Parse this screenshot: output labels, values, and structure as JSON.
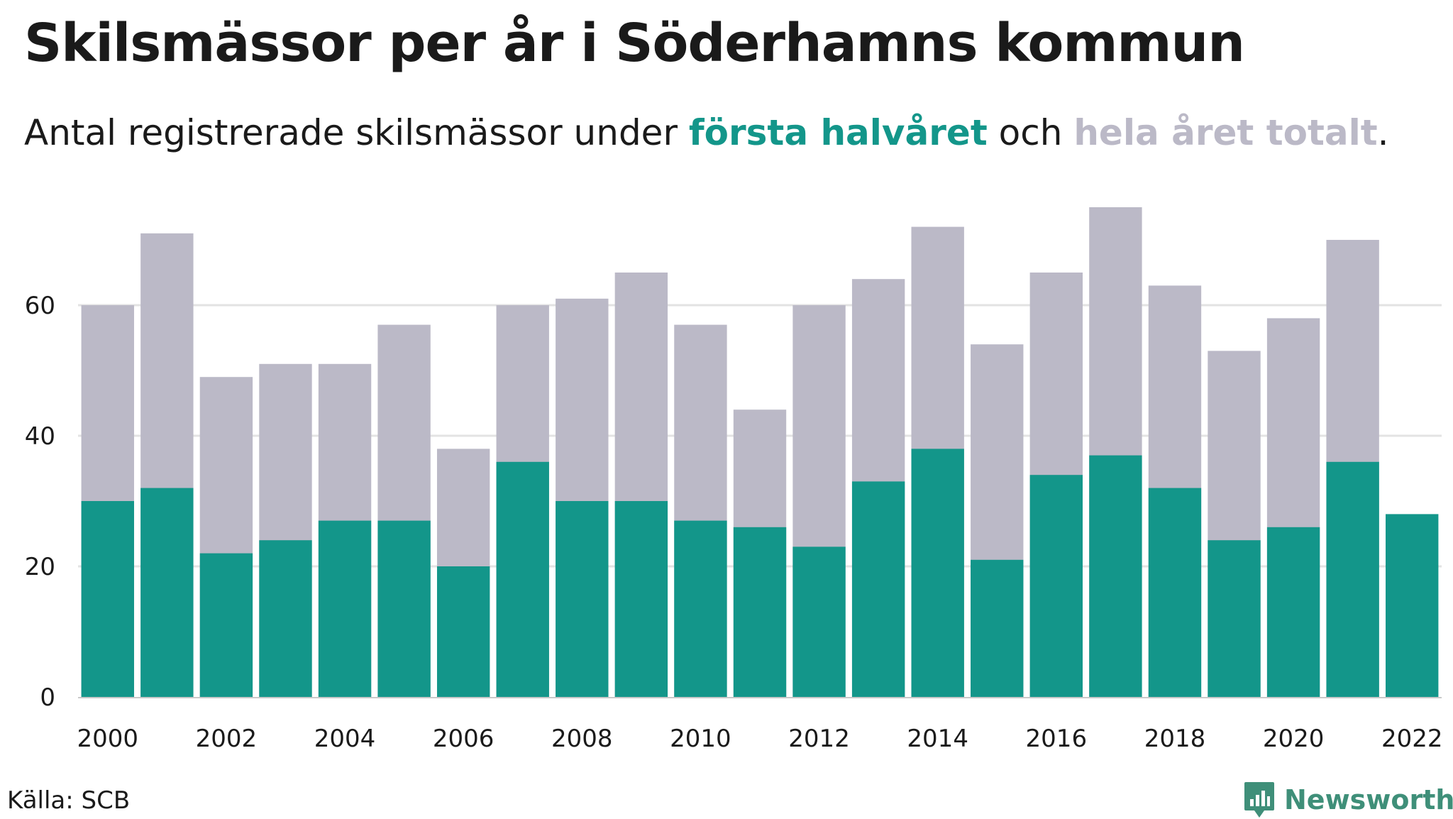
{
  "title": "Skilsmässor per år i Söderhamns kommun",
  "subtitle": {
    "prefix": "Antal registrerade skilsmässor under ",
    "highlight1": "första halvåret",
    "middle": " och ",
    "highlight2": "hela året totalt",
    "suffix": "."
  },
  "source": "Källa: SCB",
  "brand": "Newsworthy",
  "colors": {
    "first_half": "#13968a",
    "full_year": "#bbb9c7",
    "grid": "#e3e3e3",
    "text": "#1a1a1a",
    "brand": "#3f8f79"
  },
  "chart_data": {
    "type": "bar",
    "stacking": "overlay",
    "categories": [
      "2000",
      "2001",
      "2002",
      "2003",
      "2004",
      "2005",
      "2006",
      "2007",
      "2008",
      "2009",
      "2010",
      "2011",
      "2012",
      "2013",
      "2014",
      "2015",
      "2016",
      "2017",
      "2018",
      "2019",
      "2020",
      "2021",
      "2022"
    ],
    "tick_labels": [
      "2000",
      "2002",
      "2004",
      "2006",
      "2008",
      "2010",
      "2012",
      "2014",
      "2016",
      "2018",
      "2020",
      "2022"
    ],
    "series": [
      {
        "name": "hela året totalt",
        "values": [
          60,
          71,
          49,
          51,
          51,
          57,
          38,
          60,
          61,
          65,
          57,
          44,
          60,
          64,
          72,
          54,
          65,
          75,
          63,
          53,
          58,
          70,
          null
        ]
      },
      {
        "name": "första halvåret",
        "values": [
          30,
          32,
          22,
          24,
          27,
          27,
          20,
          36,
          30,
          30,
          27,
          26,
          23,
          33,
          38,
          21,
          34,
          37,
          32,
          24,
          26,
          36,
          28
        ]
      }
    ],
    "yticks": [
      0,
      20,
      40,
      60
    ],
    "ylim": [
      0,
      78
    ],
    "grid": true,
    "legend": "in subtitle"
  }
}
